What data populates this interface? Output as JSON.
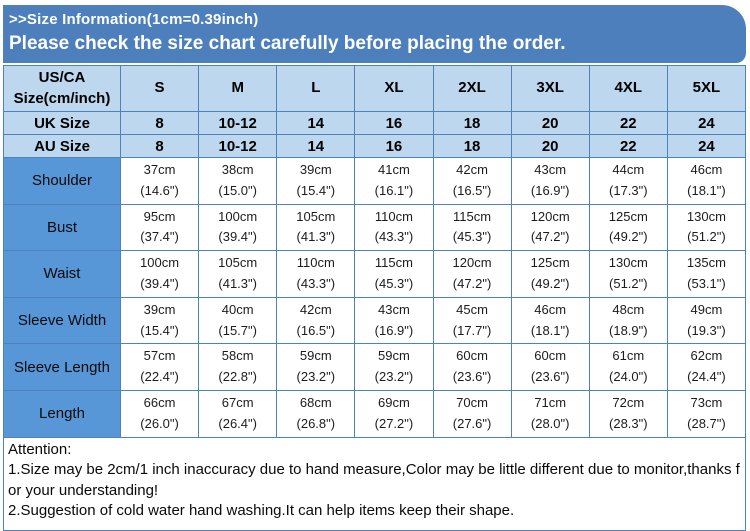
{
  "header": {
    "title": ">>Size Information(1cm=0.39inch)",
    "subtitle": "Please check the size chart carefully before placing the order."
  },
  "table": {
    "corner_header": "US/CA Size(cm/inch)",
    "size_headers": [
      "S",
      "M",
      "L",
      "XL",
      "2XL",
      "3XL",
      "4XL",
      "5XL"
    ],
    "uk_row": {
      "label": "UK Size",
      "values": [
        "8",
        "10-12",
        "14",
        "16",
        "18",
        "20",
        "22",
        "24"
      ]
    },
    "au_row": {
      "label": "AU Size",
      "values": [
        "8",
        "10-12",
        "14",
        "16",
        "18",
        "20",
        "22",
        "24"
      ]
    },
    "measurements": [
      {
        "label": "Shoulder",
        "cm": [
          "37cm",
          "38cm",
          "39cm",
          "41cm",
          "42cm",
          "43cm",
          "44cm",
          "46cm"
        ],
        "inch": [
          "(14.6\")",
          "(15.0\")",
          "(15.4\")",
          "(16.1\")",
          "(16.5\")",
          "(16.9\")",
          "(17.3\")",
          "(18.1\")"
        ]
      },
      {
        "label": "Bust",
        "cm": [
          "95cm",
          "100cm",
          "105cm",
          "110cm",
          "115cm",
          "120cm",
          "125cm",
          "130cm"
        ],
        "inch": [
          "(37.4\")",
          "(39.4\")",
          "(41.3\")",
          "(43.3\")",
          "(45.3\")",
          "(47.2\")",
          "(49.2\")",
          "(51.2\")"
        ]
      },
      {
        "label": "Waist",
        "cm": [
          "100cm",
          "105cm",
          "110cm",
          "115cm",
          "120cm",
          "125cm",
          "130cm",
          "135cm"
        ],
        "inch": [
          "(39.4\")",
          "(41.3\")",
          "(43.3\")",
          "(45.3\")",
          "(47.2\")",
          "(49.2\")",
          "(51.2\")",
          "(53.1\")"
        ]
      },
      {
        "label": "Sleeve Width",
        "cm": [
          "39cm",
          "40cm",
          "42cm",
          "43cm",
          "45cm",
          "46cm",
          "48cm",
          "49cm"
        ],
        "inch": [
          "(15.4\")",
          "(15.7\")",
          "(16.5\")",
          "(16.9\")",
          "(17.7\")",
          "(18.1\")",
          "(18.9\")",
          "(19.3\")"
        ]
      },
      {
        "label": "Sleeve Length",
        "cm": [
          "57cm",
          "58cm",
          "59cm",
          "59cm",
          "60cm",
          "60cm",
          "61cm",
          "62cm"
        ],
        "inch": [
          "(22.4\")",
          "(22.8\")",
          "(23.2\")",
          "(23.2\")",
          "(23.6\")",
          "(23.6\")",
          "(24.0\")",
          "(24.4\")"
        ]
      },
      {
        "label": "Length",
        "cm": [
          "66cm",
          "67cm",
          "68cm",
          "69cm",
          "70cm",
          "71cm",
          "72cm",
          "73cm"
        ],
        "inch": [
          "(26.0\")",
          "(26.4\")",
          "(26.8\")",
          "(27.2\")",
          "(27.6\")",
          "(28.0\")",
          "(28.3\")",
          "(28.7\")"
        ]
      }
    ]
  },
  "attention": {
    "title": "Attention:",
    "notes": [
      "1.Size may be 2cm/1 inch inaccuracy due to hand measure,Color may be little different due to monitor,thanks for your understanding!",
      "2.Suggestion of cold water hand washing.It can help items keep their shape."
    ]
  },
  "colors": {
    "banner_blue": "#4d7fbc",
    "header_cell_blue": "#bdd7ee",
    "label_cell_blue": "#5796d7",
    "border_blue": "#4f81bd"
  }
}
